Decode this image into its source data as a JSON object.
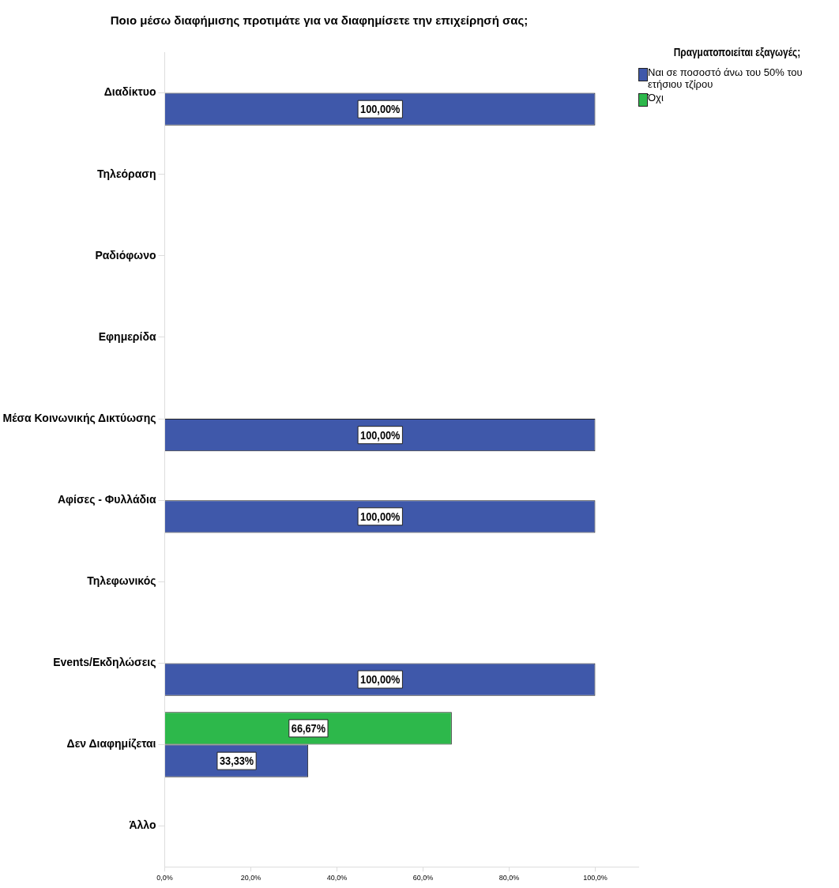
{
  "chart_data": {
    "type": "bar",
    "orientation": "horizontal",
    "title": "Ποιο μέσω διαφήμισης προτιμάτε για να διαφημίσετε την επιχείρησή σας;",
    "legend_title": "Πραγματοποιείται εξαγωγές;",
    "legend": "top right",
    "grid": false,
    "categories": [
      "Διαδίκτυο",
      "Τηλεόραση",
      "Ραδιόφωνο",
      "Εφημερίδα",
      "Μέσα Κοινωνικής Δικτύωσης",
      "Αφίσες - Φυλλάδια",
      "Τηλεφωνικός",
      "Events/Εκδηλώσεις",
      "Δεν Διαφημίζεται",
      "Άλλο"
    ],
    "series": [
      {
        "name": "Ναι σε ποσοστό άνω του 50% του ετήσιου τζίρου",
        "color": "#3f58aa",
        "values": [
          100,
          null,
          null,
          null,
          100,
          100,
          null,
          100,
          33.33,
          null
        ],
        "value_labels": [
          "100,00%",
          null,
          null,
          null,
          "100,00%",
          "100,00%",
          null,
          "100,00%",
          "33,33%",
          null
        ]
      },
      {
        "name": "Όχι",
        "color": "#2db84b",
        "values": [
          null,
          null,
          null,
          null,
          null,
          null,
          null,
          null,
          66.67,
          null
        ],
        "value_labels": [
          null,
          null,
          null,
          null,
          null,
          null,
          null,
          null,
          "66,67%",
          null
        ]
      }
    ],
    "xlim": [
      0,
      110
    ],
    "xticks": [
      {
        "value": 0,
        "label": "0,0%"
      },
      {
        "value": 20,
        "label": "20,0%"
      },
      {
        "value": 40,
        "label": "40,0%"
      },
      {
        "value": 60,
        "label": "60,0%"
      },
      {
        "value": 80,
        "label": "80,0%"
      },
      {
        "value": 100,
        "label": "100,0%"
      }
    ]
  }
}
